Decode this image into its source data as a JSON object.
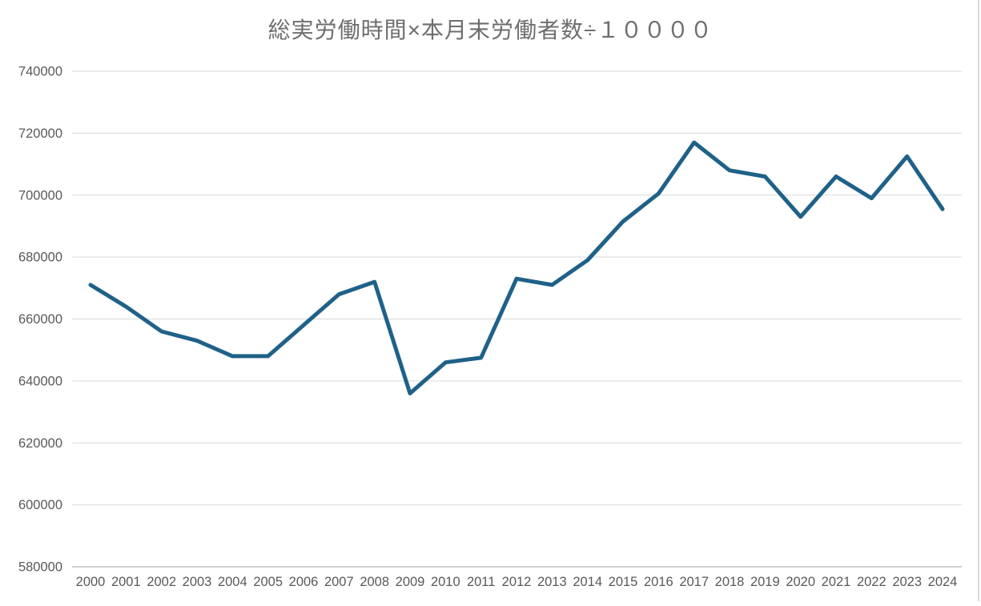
{
  "chart_data": {
    "type": "line",
    "title": "総実労働時間×本月末労働者数÷１００００",
    "categories": [
      "2000",
      "2001",
      "2002",
      "2003",
      "2004",
      "2005",
      "2006",
      "2007",
      "2008",
      "2009",
      "2010",
      "2011",
      "2012",
      "2013",
      "2014",
      "2015",
      "2016",
      "2017",
      "2018",
      "2019",
      "2020",
      "2021",
      "2022",
      "2023",
      "2024"
    ],
    "values": [
      671000,
      664000,
      656000,
      653000,
      648000,
      648000,
      658000,
      668000,
      672000,
      636000,
      646000,
      647500,
      673000,
      671000,
      679000,
      691500,
      700500,
      717000,
      708000,
      706000,
      693000,
      706000,
      699000,
      712500,
      695500
    ],
    "xlabel": "",
    "ylabel": "",
    "ylim": [
      580000,
      740000
    ],
    "ytick_step": 20000,
    "ytick_labels": [
      "580000",
      "600000",
      "620000",
      "640000",
      "660000",
      "680000",
      "700000",
      "720000",
      "740000"
    ],
    "grid": true,
    "legend": false,
    "colors": {
      "line": "#1f6188",
      "gridline": "#d9d9d9",
      "axis_line": "#bfbfbf",
      "tick_label": "#595959",
      "title": "#6e6e6e",
      "background": "#ffffff",
      "right_border": "#d9d9d9"
    }
  }
}
